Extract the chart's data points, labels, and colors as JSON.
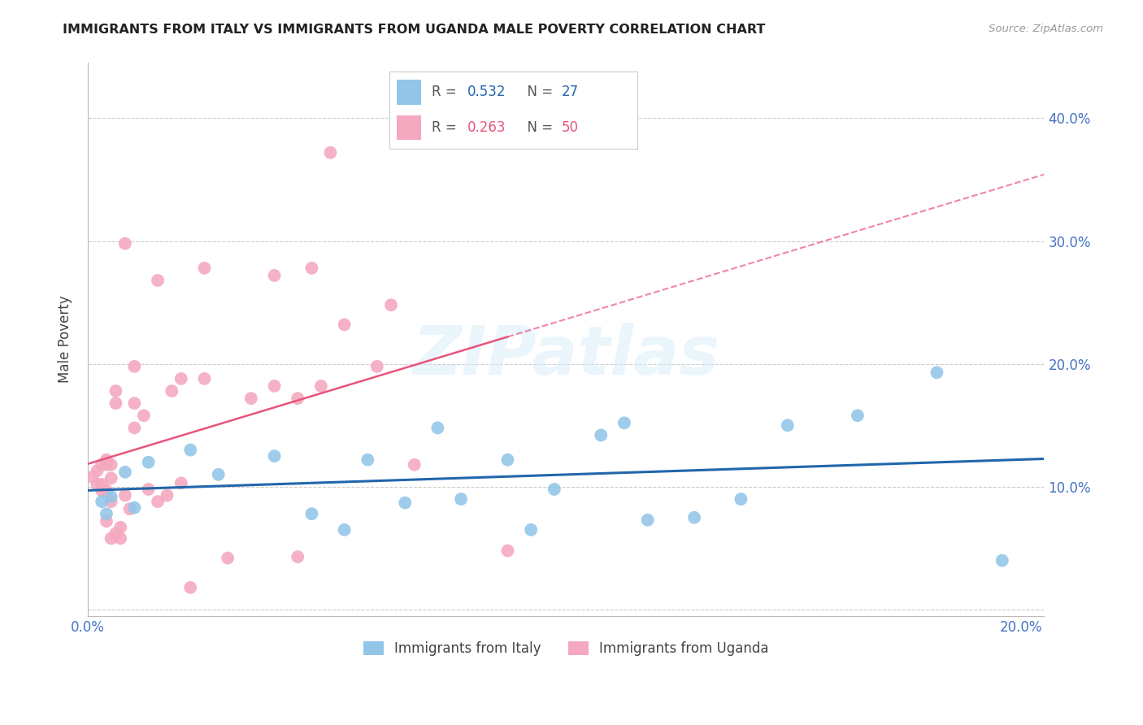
{
  "title": "IMMIGRANTS FROM ITALY VS IMMIGRANTS FROM UGANDA MALE POVERTY CORRELATION CHART",
  "source": "Source: ZipAtlas.com",
  "ylabel": "Male Poverty",
  "x_min": 0.0,
  "x_max": 0.205,
  "y_min": -0.005,
  "y_max": 0.445,
  "italy_color": "#92C5E8",
  "uganda_color": "#F4A8BF",
  "italy_R": 0.532,
  "italy_N": 27,
  "uganda_R": 0.263,
  "uganda_N": 50,
  "italy_line_color": "#2166AC",
  "uganda_line_color": "#E8547A",
  "legend_italy_label": "Immigrants from Italy",
  "legend_uganda_label": "Immigrants from Uganda",
  "watermark": "ZIPatlas",
  "label_color": "#4472C4",
  "italy_x": [
    0.003,
    0.004,
    0.005,
    0.008,
    0.01,
    0.013,
    0.022,
    0.028,
    0.04,
    0.048,
    0.055,
    0.06,
    0.068,
    0.075,
    0.08,
    0.09,
    0.095,
    0.1,
    0.11,
    0.115,
    0.12,
    0.13,
    0.14,
    0.15,
    0.165,
    0.182,
    0.196
  ],
  "italy_y": [
    0.088,
    0.078,
    0.092,
    0.112,
    0.083,
    0.12,
    0.13,
    0.11,
    0.125,
    0.078,
    0.065,
    0.122,
    0.087,
    0.148,
    0.09,
    0.122,
    0.065,
    0.098,
    0.142,
    0.152,
    0.073,
    0.075,
    0.09,
    0.15,
    0.158,
    0.193,
    0.04
  ],
  "uganda_x": [
    0.001,
    0.002,
    0.002,
    0.003,
    0.003,
    0.003,
    0.004,
    0.004,
    0.004,
    0.004,
    0.005,
    0.005,
    0.005,
    0.005,
    0.006,
    0.006,
    0.006,
    0.007,
    0.007,
    0.008,
    0.008,
    0.009,
    0.01,
    0.01,
    0.01,
    0.012,
    0.013,
    0.015,
    0.015,
    0.017,
    0.018,
    0.02,
    0.02,
    0.022,
    0.025,
    0.025,
    0.03,
    0.035,
    0.04,
    0.04,
    0.045,
    0.045,
    0.048,
    0.05,
    0.052,
    0.055,
    0.062,
    0.065,
    0.07,
    0.09
  ],
  "uganda_y": [
    0.108,
    0.102,
    0.113,
    0.097,
    0.102,
    0.118,
    0.097,
    0.118,
    0.122,
    0.072,
    0.058,
    0.107,
    0.118,
    0.088,
    0.178,
    0.168,
    0.062,
    0.058,
    0.067,
    0.093,
    0.298,
    0.082,
    0.198,
    0.148,
    0.168,
    0.158,
    0.098,
    0.268,
    0.088,
    0.093,
    0.178,
    0.103,
    0.188,
    0.018,
    0.278,
    0.188,
    0.042,
    0.172,
    0.272,
    0.182,
    0.043,
    0.172,
    0.278,
    0.182,
    0.372,
    0.232,
    0.198,
    0.248,
    0.118,
    0.048
  ]
}
